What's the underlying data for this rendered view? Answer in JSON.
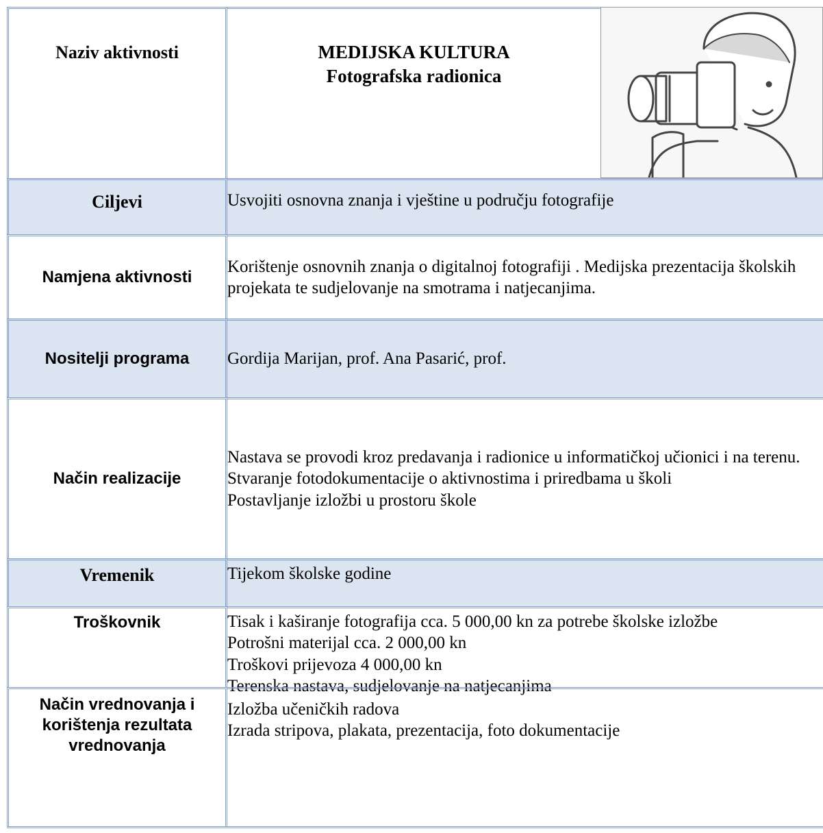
{
  "header": {
    "label": "Naziv aktivnosti",
    "title": [
      "MEDIJSKA KULTURA",
      "Fotografska radionica"
    ]
  },
  "rows": [
    {
      "label": "Ciljevi",
      "text": [
        "Usvojiti osnovna znanja i vještine u području fotografije"
      ]
    },
    {
      "label": "Namjena aktivnosti",
      "text": [
        "Korištenje osnovnih znanja o digitalnoj fotografiji . Medijska prezentacija školskih projekata te sudjelovanje na smotrama i natjecanjima."
      ]
    },
    {
      "label": "Nositelji programa",
      "text": [
        "Gordija Marijan, prof. Ana Pasarić, prof."
      ]
    },
    {
      "label": "Način realizacije",
      "text": [
        "Nastava se provodi kroz predavanja i radionice u informatičkoj učionici i na terenu.",
        "Stvaranje fotodokumentacije o aktivnostima i priredbama u školi",
        "Postavljanje izložbi u prostoru škole"
      ]
    },
    {
      "label": "Vremenik",
      "text": [
        "Tijekom školske godine"
      ]
    },
    {
      "label": "Troškovnik",
      "text": [
        "Tisak i kaširanje fotografija cca. 5 000,00 kn za potrebe školske izložbe",
        "Potrošni materijal cca. 2 000,00 kn",
        "Troškovi prijevoza 4 000,00 kn",
        "Terenska nastava, sudjelovanje na natjecanjima"
      ]
    },
    {
      "label": "Način vrednovanja i korištenja rezultata vrednovanja",
      "text": [
        "Izložba učeničkih radova",
        "Izrada stripova, plakata, prezentacija, foto dokumentacije"
      ]
    }
  ]
}
